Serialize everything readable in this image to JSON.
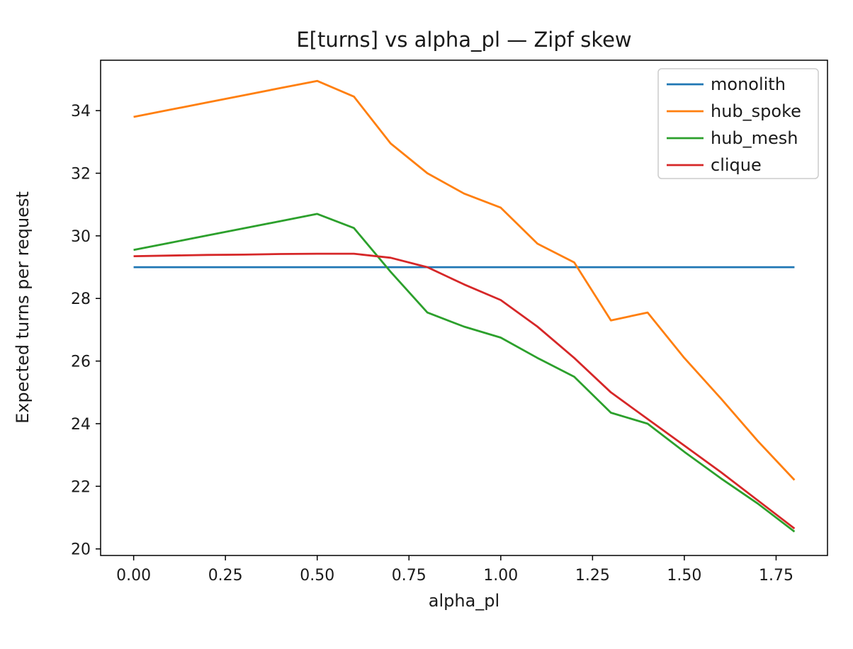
{
  "figure": {
    "background": "#ffffff",
    "text_color": "#1a1a1a",
    "spine_color": "#000000"
  },
  "chart_data": {
    "type": "line",
    "title": "E[turns] vs alpha_pl — Zipf skew",
    "xlabel": "alpha_pl",
    "ylabel": "Expected turns per request",
    "grid": false,
    "xlim": [
      -0.09,
      1.89
    ],
    "ylim": [
      19.79,
      35.61
    ],
    "xticks": {
      "values": [
        0,
        0.25,
        0.5,
        0.75,
        1.0,
        1.25,
        1.5,
        1.75
      ],
      "labels": [
        "0.00",
        "0.25",
        "0.50",
        "0.75",
        "1.00",
        "1.25",
        "1.50",
        "1.75"
      ]
    },
    "yticks": {
      "values": [
        20,
        22,
        24,
        26,
        28,
        30,
        32,
        34
      ],
      "labels": [
        "20",
        "22",
        "24",
        "26",
        "28",
        "30",
        "32",
        "34"
      ]
    },
    "x": [
      0.0,
      0.1,
      0.2,
      0.3,
      0.4,
      0.5,
      0.6,
      0.7,
      0.8,
      0.9,
      1.0,
      1.1,
      1.2,
      1.3,
      1.4,
      1.5,
      1.6,
      1.7,
      1.8
    ],
    "series": [
      {
        "name": "monolith",
        "color": "#1f77b4",
        "values": [
          29.0,
          29.0,
          29.0,
          29.0,
          29.0,
          29.0,
          29.0,
          29.0,
          29.0,
          29.0,
          29.0,
          29.0,
          29.0,
          29.0,
          29.0,
          29.0,
          29.0,
          29.0,
          29.0
        ]
      },
      {
        "name": "hub_spoke",
        "color": "#ff7f0e",
        "values": [
          33.8,
          34.03,
          34.26,
          34.49,
          34.72,
          34.95,
          34.45,
          32.95,
          32.0,
          31.35,
          30.9,
          29.75,
          29.15,
          27.3,
          27.55,
          26.1,
          24.8,
          23.45,
          22.2
        ]
      },
      {
        "name": "hub_mesh",
        "color": "#2ca02c",
        "values": [
          29.55,
          29.78,
          30.01,
          30.24,
          30.47,
          30.7,
          30.25,
          28.85,
          27.55,
          27.1,
          26.75,
          26.1,
          25.5,
          24.35,
          24.0,
          23.1,
          22.25,
          21.45,
          20.55
        ]
      },
      {
        "name": "clique",
        "color": "#d62728",
        "values": [
          29.35,
          29.37,
          29.39,
          29.4,
          29.42,
          29.43,
          29.43,
          29.3,
          29.0,
          28.45,
          27.95,
          27.1,
          26.1,
          25.0,
          24.15,
          23.3,
          22.45,
          21.55,
          20.65
        ]
      }
    ],
    "legend": {
      "position": "upper right",
      "entries": [
        "monolith",
        "hub_spoke",
        "hub_mesh",
        "clique"
      ]
    }
  }
}
